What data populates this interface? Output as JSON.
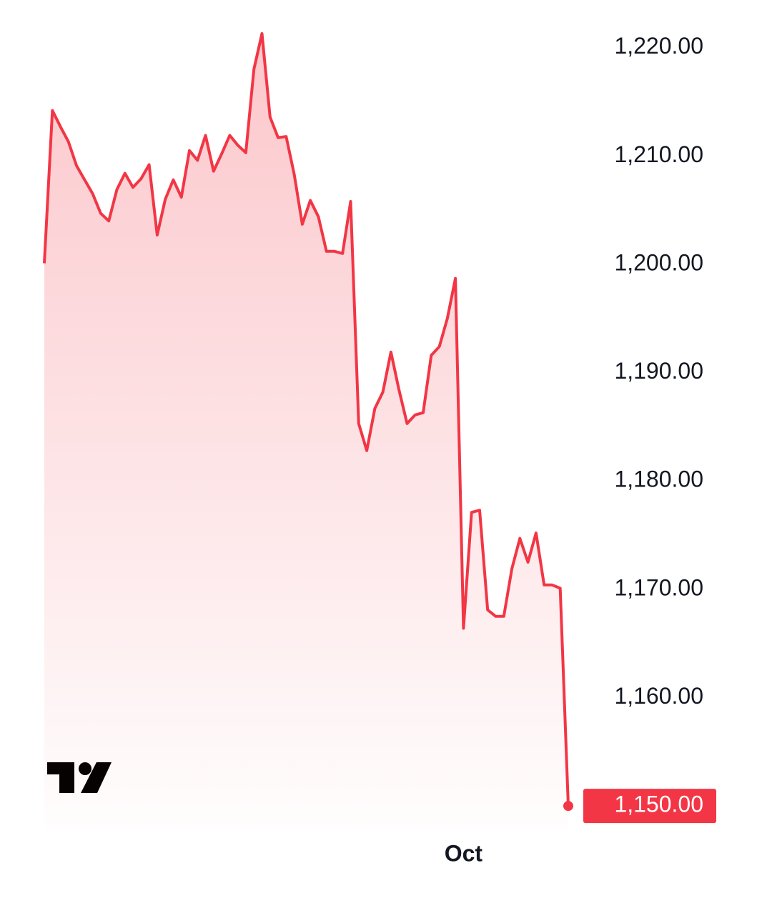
{
  "chart_data": {
    "type": "area",
    "categories": [
      null,
      null,
      null,
      null,
      null,
      null,
      null,
      null,
      null,
      null,
      null,
      null,
      null,
      null,
      null,
      null,
      null,
      null,
      null,
      null,
      null,
      null,
      null,
      null,
      null,
      null,
      null,
      null,
      null,
      null,
      null,
      null,
      null,
      null,
      null,
      null,
      null,
      null,
      null,
      null,
      null,
      null,
      null,
      null,
      null,
      null,
      null,
      null,
      null,
      null,
      null,
      null,
      "Oct",
      null,
      null,
      null,
      null,
      null,
      null,
      null,
      null,
      null,
      null,
      null,
      null,
      null
    ],
    "values": [
      1200.1,
      1214.2,
      1212.7,
      1211.3,
      1209.1,
      1207.8,
      1206.5,
      1204.7,
      1204.0,
      1206.9,
      1208.4,
      1207.1,
      1207.9,
      1209.2,
      1202.7,
      1206.0,
      1207.8,
      1206.2,
      1210.5,
      1209.6,
      1211.9,
      1208.6,
      1210.2,
      1211.9,
      1211.0,
      1210.3,
      1218.0,
      1221.3,
      1213.6,
      1211.7,
      1211.8,
      1208.3,
      1203.7,
      1205.9,
      1204.4,
      1201.2,
      1201.2,
      1201.0,
      1205.8,
      1185.3,
      1182.8,
      1186.7,
      1188.2,
      1191.9,
      1188.4,
      1185.3,
      1186.1,
      1186.3,
      1191.6,
      1192.4,
      1195.0,
      1198.7,
      1166.4,
      1177.1,
      1177.3,
      1168.1,
      1167.5,
      1167.5,
      1171.9,
      1174.7,
      1172.5,
      1175.2,
      1170.4,
      1170.4,
      1170.1,
      1150
    ],
    "last_value_label": "1,150.00",
    "color": "#f23645",
    "ylim": [
      1147.9,
      1224.4
    ],
    "yticks": [
      {
        "value": 1160,
        "label": "1,160.00"
      },
      {
        "value": 1170,
        "label": "1,170.00"
      },
      {
        "value": 1180,
        "label": "1,180.00"
      },
      {
        "value": 1190,
        "label": "1,190.00"
      },
      {
        "value": 1200,
        "label": "1,200.00"
      },
      {
        "value": 1210,
        "label": "1,210.00"
      },
      {
        "value": 1220,
        "label": "1,220.00"
      }
    ],
    "grid": false
  }
}
